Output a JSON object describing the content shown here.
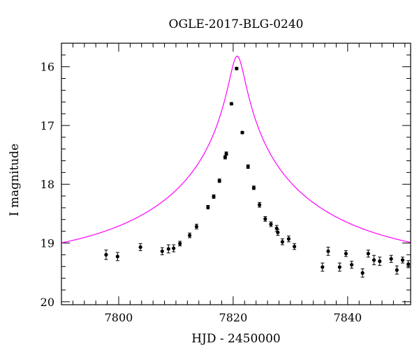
{
  "chart_data": {
    "type": "scatter",
    "title": "OGLE-2017-BLG-0240",
    "xlabel": "HJD - 2450000",
    "ylabel": "I magnitude",
    "xlim": [
      7790,
      7851
    ],
    "ylim": [
      15.6,
      20.05
    ],
    "y_inverted": true,
    "grid": false,
    "x_major_ticks": [
      7800,
      7820,
      7840
    ],
    "x_tick_labels": [
      "7800",
      "7820",
      "7840"
    ],
    "x_minor_step": 2,
    "y_major_ticks": [
      16,
      17,
      18,
      19,
      20
    ],
    "y_tick_labels": [
      "16",
      "17",
      "18",
      "19",
      "20"
    ],
    "y_minor_step": 0.2,
    "model": {
      "name": "",
      "color": "#ff00ff",
      "t0": 7820.7,
      "peak_mag": 15.82,
      "baseline_mag": 19.36
    },
    "series": [
      {
        "name": "",
        "color": "#000000",
        "points": [
          {
            "x": 7797.8,
            "y": 19.2,
            "err": 0.08
          },
          {
            "x": 7799.8,
            "y": 19.23,
            "err": 0.07
          },
          {
            "x": 7803.8,
            "y": 19.07,
            "err": 0.06
          },
          {
            "x": 7807.6,
            "y": 19.14,
            "err": 0.06
          },
          {
            "x": 7808.7,
            "y": 19.1,
            "err": 0.07
          },
          {
            "x": 7809.6,
            "y": 19.09,
            "err": 0.06
          },
          {
            "x": 7810.7,
            "y": 19.01,
            "err": 0.04
          },
          {
            "x": 7812.4,
            "y": 18.87,
            "err": 0.04
          },
          {
            "x": 7813.6,
            "y": 18.72,
            "err": 0.04
          },
          {
            "x": 7815.6,
            "y": 18.39,
            "err": 0.03
          },
          {
            "x": 7816.6,
            "y": 18.21,
            "err": 0.03
          },
          {
            "x": 7817.6,
            "y": 17.94,
            "err": 0.03
          },
          {
            "x": 7818.6,
            "y": 17.54,
            "err": 0.03
          },
          {
            "x": 7818.8,
            "y": 17.48,
            "err": 0.03
          },
          {
            "x": 7819.7,
            "y": 16.63,
            "err": 0.02
          },
          {
            "x": 7820.6,
            "y": 16.03,
            "err": 0.02
          },
          {
            "x": 7821.6,
            "y": 17.12,
            "err": 0.02
          },
          {
            "x": 7822.6,
            "y": 17.7,
            "err": 0.03
          },
          {
            "x": 7823.6,
            "y": 18.06,
            "err": 0.03
          },
          {
            "x": 7824.6,
            "y": 18.35,
            "err": 0.04
          },
          {
            "x": 7825.6,
            "y": 18.59,
            "err": 0.04
          },
          {
            "x": 7826.6,
            "y": 18.68,
            "err": 0.04
          },
          {
            "x": 7827.6,
            "y": 18.75,
            "err": 0.05
          },
          {
            "x": 7827.8,
            "y": 18.82,
            "err": 0.05
          },
          {
            "x": 7828.6,
            "y": 18.98,
            "err": 0.05
          },
          {
            "x": 7829.7,
            "y": 18.93,
            "err": 0.05
          },
          {
            "x": 7830.7,
            "y": 19.06,
            "err": 0.05
          },
          {
            "x": 7835.6,
            "y": 19.41,
            "err": 0.07
          },
          {
            "x": 7836.6,
            "y": 19.14,
            "err": 0.07
          },
          {
            "x": 7838.6,
            "y": 19.41,
            "err": 0.07
          },
          {
            "x": 7839.7,
            "y": 19.18,
            "err": 0.05
          },
          {
            "x": 7840.7,
            "y": 19.37,
            "err": 0.06
          },
          {
            "x": 7842.6,
            "y": 19.51,
            "err": 0.07
          },
          {
            "x": 7843.6,
            "y": 19.18,
            "err": 0.06
          },
          {
            "x": 7844.6,
            "y": 19.29,
            "err": 0.08
          },
          {
            "x": 7845.6,
            "y": 19.31,
            "err": 0.07
          },
          {
            "x": 7847.6,
            "y": 19.27,
            "err": 0.06
          },
          {
            "x": 7848.6,
            "y": 19.46,
            "err": 0.07
          },
          {
            "x": 7849.6,
            "y": 19.29,
            "err": 0.05
          },
          {
            "x": 7850.6,
            "y": 19.36,
            "err": 0.06
          }
        ]
      }
    ]
  }
}
